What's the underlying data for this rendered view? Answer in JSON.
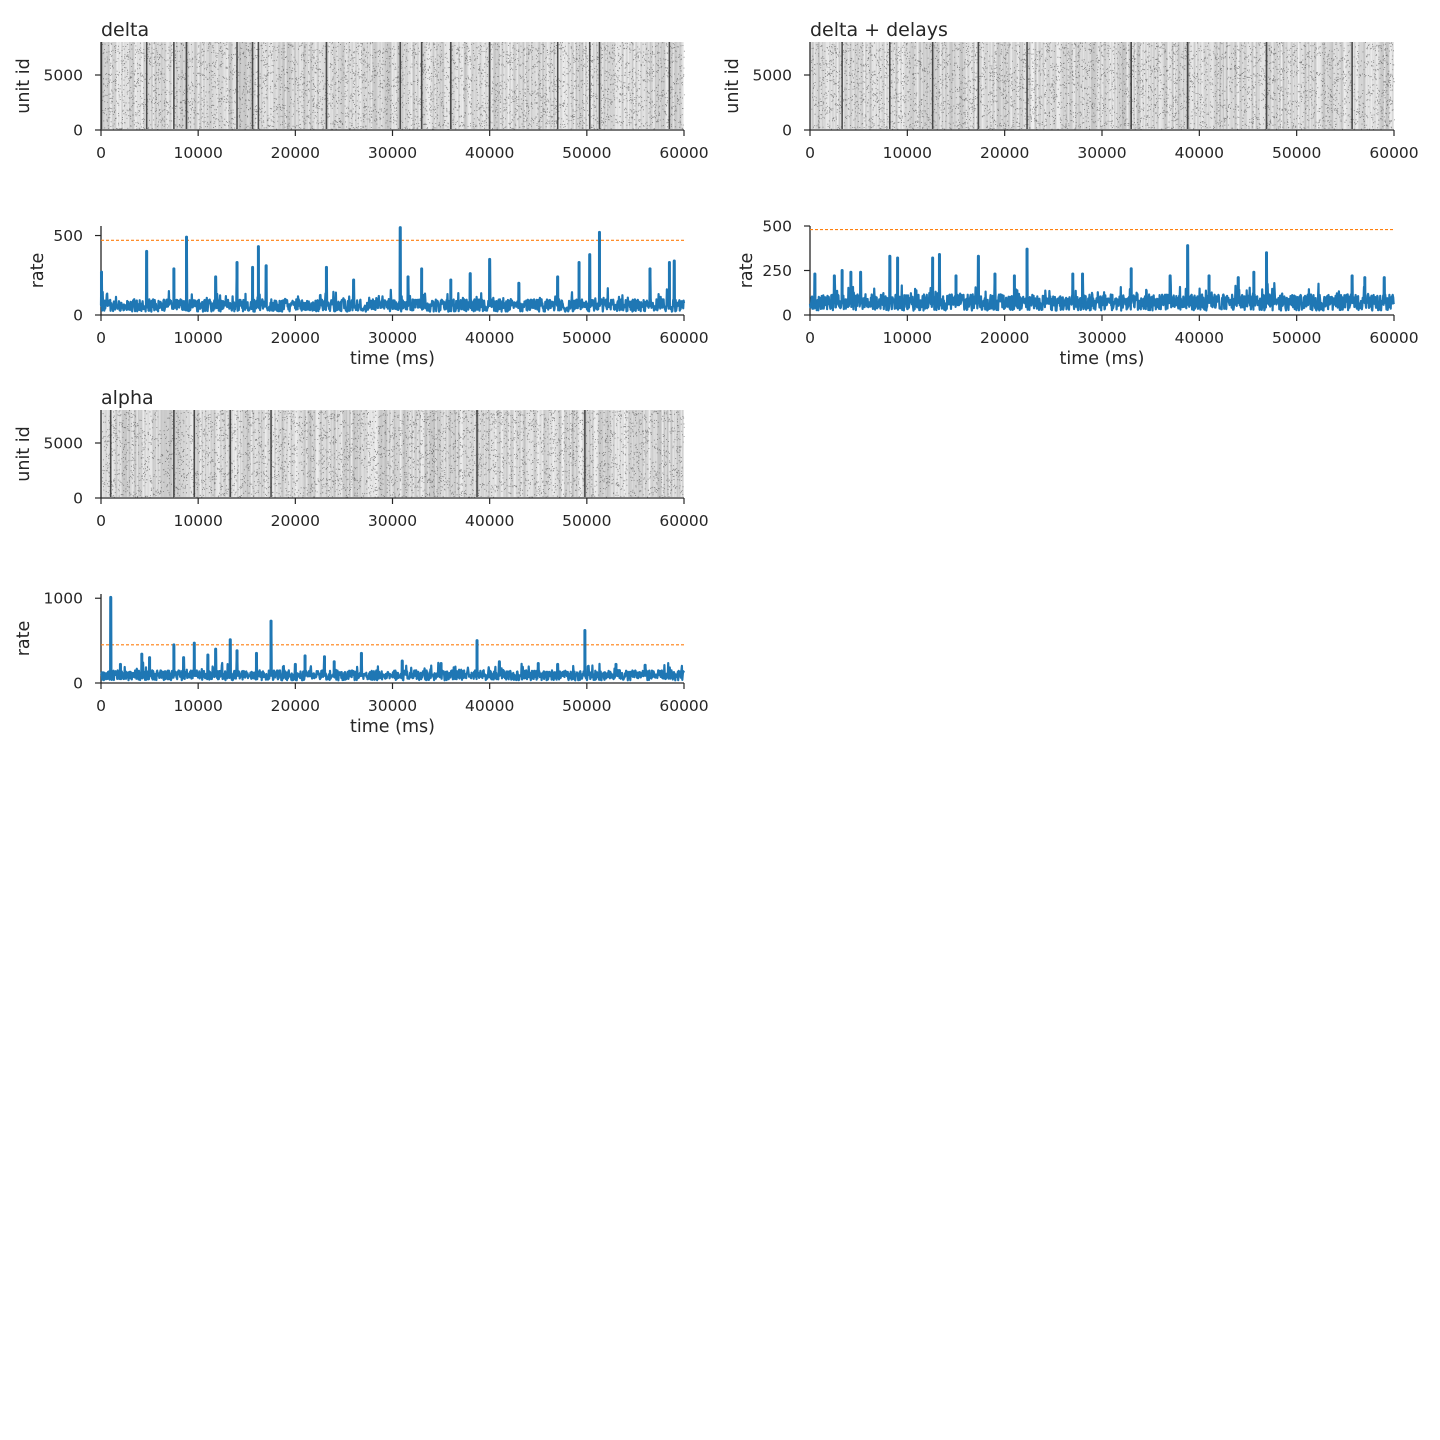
{
  "figure": {
    "panels": [
      {
        "key": "delta",
        "title": "delta"
      },
      {
        "key": "delta_delays",
        "title": "delta + delays"
      },
      {
        "key": "alpha",
        "title": "alpha"
      }
    ]
  },
  "colors": {
    "raster": "#333333",
    "rate_line": "#1f77b4",
    "threshold_line": "#ff7f0e",
    "axis": "#262626",
    "background": "#ffffff"
  },
  "chart_data": [
    {
      "type": "scatter",
      "title": "delta",
      "xlabel": "",
      "ylabel": "unit id",
      "xlim": [
        0,
        60000
      ],
      "ylim": [
        0,
        8000
      ],
      "xticks": [
        0,
        10000,
        20000,
        30000,
        40000,
        50000,
        60000
      ],
      "yticks": [
        0,
        5000
      ],
      "n_units": 8000,
      "burst_times_ms": [
        50,
        4700,
        7500,
        8800,
        14000,
        15600,
        16200,
        23200,
        30800,
        33000,
        36000,
        40000,
        47000,
        50300,
        51300,
        58500
      ]
    },
    {
      "type": "line",
      "title": "",
      "xlabel": "time (ms)",
      "ylabel": "rate",
      "xlim": [
        0,
        60000
      ],
      "ylim": [
        0,
        560
      ],
      "xticks": [
        0,
        10000,
        20000,
        30000,
        40000,
        50000,
        60000
      ],
      "yticks": [
        0,
        500
      ],
      "baseline": 60,
      "threshold": 470,
      "peaks": [
        {
          "x": 50,
          "y": 270
        },
        {
          "x": 4700,
          "y": 400
        },
        {
          "x": 7500,
          "y": 290
        },
        {
          "x": 8800,
          "y": 490
        },
        {
          "x": 11800,
          "y": 240
        },
        {
          "x": 14000,
          "y": 330
        },
        {
          "x": 15600,
          "y": 300
        },
        {
          "x": 16200,
          "y": 430
        },
        {
          "x": 17000,
          "y": 310
        },
        {
          "x": 23200,
          "y": 300
        },
        {
          "x": 26000,
          "y": 220
        },
        {
          "x": 30800,
          "y": 550
        },
        {
          "x": 31600,
          "y": 240
        },
        {
          "x": 33000,
          "y": 290
        },
        {
          "x": 36000,
          "y": 220
        },
        {
          "x": 38000,
          "y": 260
        },
        {
          "x": 40000,
          "y": 350
        },
        {
          "x": 43000,
          "y": 200
        },
        {
          "x": 47000,
          "y": 240
        },
        {
          "x": 49200,
          "y": 330
        },
        {
          "x": 50300,
          "y": 380
        },
        {
          "x": 51300,
          "y": 520
        },
        {
          "x": 56500,
          "y": 290
        },
        {
          "x": 58500,
          "y": 330
        },
        {
          "x": 59000,
          "y": 340
        }
      ]
    },
    {
      "type": "scatter",
      "title": "delta + delays",
      "xlabel": "",
      "ylabel": "unit id",
      "xlim": [
        0,
        60000
      ],
      "ylim": [
        0,
        8000
      ],
      "xticks": [
        0,
        10000,
        20000,
        30000,
        40000,
        50000,
        60000
      ],
      "yticks": [
        0,
        5000
      ],
      "n_units": 8000,
      "burst_times_ms": [
        3300,
        8200,
        12600,
        17300,
        22300,
        33000,
        38800,
        46900,
        55700
      ]
    },
    {
      "type": "line",
      "title": "",
      "xlabel": "time (ms)",
      "ylabel": "rate",
      "xlim": [
        0,
        60000
      ],
      "ylim": [
        0,
        500
      ],
      "xticks": [
        0,
        10000,
        20000,
        30000,
        40000,
        50000,
        60000
      ],
      "yticks": [
        0,
        250,
        500
      ],
      "baseline": 70,
      "threshold": 480,
      "peaks": [
        {
          "x": 500,
          "y": 230
        },
        {
          "x": 2500,
          "y": 220
        },
        {
          "x": 3300,
          "y": 250
        },
        {
          "x": 4200,
          "y": 240
        },
        {
          "x": 5200,
          "y": 240
        },
        {
          "x": 8200,
          "y": 330
        },
        {
          "x": 9000,
          "y": 320
        },
        {
          "x": 12600,
          "y": 320
        },
        {
          "x": 13300,
          "y": 340
        },
        {
          "x": 15000,
          "y": 220
        },
        {
          "x": 17300,
          "y": 330
        },
        {
          "x": 19000,
          "y": 230
        },
        {
          "x": 21000,
          "y": 220
        },
        {
          "x": 22300,
          "y": 370
        },
        {
          "x": 27000,
          "y": 230
        },
        {
          "x": 28000,
          "y": 230
        },
        {
          "x": 33000,
          "y": 260
        },
        {
          "x": 37000,
          "y": 220
        },
        {
          "x": 38800,
          "y": 390
        },
        {
          "x": 41000,
          "y": 220
        },
        {
          "x": 44000,
          "y": 210
        },
        {
          "x": 45600,
          "y": 240
        },
        {
          "x": 46900,
          "y": 350
        },
        {
          "x": 55700,
          "y": 220
        },
        {
          "x": 57000,
          "y": 210
        },
        {
          "x": 59000,
          "y": 210
        }
      ]
    },
    {
      "type": "scatter",
      "title": "alpha",
      "xlabel": "",
      "ylabel": "unit id",
      "xlim": [
        0,
        60000
      ],
      "ylim": [
        0,
        8000
      ],
      "xticks": [
        0,
        10000,
        20000,
        30000,
        40000,
        50000,
        60000
      ],
      "yticks": [
        0,
        5000
      ],
      "n_units": 8000,
      "burst_times_ms": [
        1000,
        7500,
        9600,
        13300,
        17500,
        38700,
        49800
      ]
    },
    {
      "type": "line",
      "title": "",
      "xlabel": "time (ms)",
      "ylabel": "rate",
      "xlim": [
        0,
        60000
      ],
      "ylim": [
        0,
        1050
      ],
      "xticks": [
        0,
        10000,
        20000,
        30000,
        40000,
        50000,
        60000
      ],
      "yticks": [
        0,
        1000
      ],
      "baseline": 90,
      "threshold": 450,
      "peaks": [
        {
          "x": 1000,
          "y": 1010
        },
        {
          "x": 2000,
          "y": 220
        },
        {
          "x": 4200,
          "y": 340
        },
        {
          "x": 5000,
          "y": 300
        },
        {
          "x": 7500,
          "y": 450
        },
        {
          "x": 8500,
          "y": 300
        },
        {
          "x": 9600,
          "y": 470
        },
        {
          "x": 11000,
          "y": 330
        },
        {
          "x": 11800,
          "y": 400
        },
        {
          "x": 13300,
          "y": 510
        },
        {
          "x": 14000,
          "y": 380
        },
        {
          "x": 16000,
          "y": 350
        },
        {
          "x": 17500,
          "y": 730
        },
        {
          "x": 20000,
          "y": 220
        },
        {
          "x": 21000,
          "y": 320
        },
        {
          "x": 23000,
          "y": 310
        },
        {
          "x": 24000,
          "y": 250
        },
        {
          "x": 26800,
          "y": 350
        },
        {
          "x": 31000,
          "y": 260
        },
        {
          "x": 35000,
          "y": 230
        },
        {
          "x": 38700,
          "y": 500
        },
        {
          "x": 41000,
          "y": 250
        },
        {
          "x": 45000,
          "y": 230
        },
        {
          "x": 47000,
          "y": 220
        },
        {
          "x": 49800,
          "y": 620
        },
        {
          "x": 53000,
          "y": 220
        },
        {
          "x": 56000,
          "y": 210
        }
      ]
    }
  ]
}
